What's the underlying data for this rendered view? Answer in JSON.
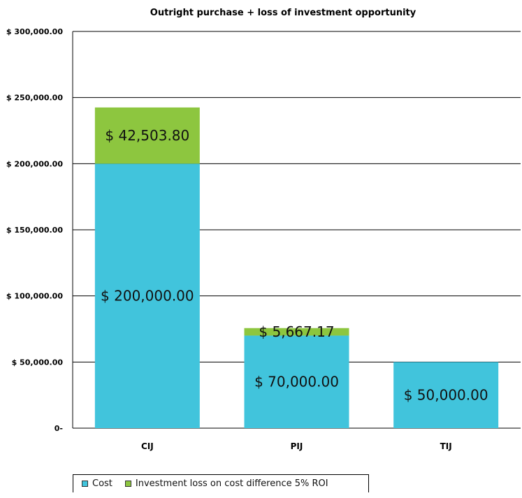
{
  "chart_data": {
    "type": "bar",
    "stacked": true,
    "title": "Outright purchase + loss of investment opportunity",
    "categories": [
      "CIJ",
      "PIJ",
      "TIJ"
    ],
    "series": [
      {
        "name": "Cost",
        "color": "#41c4dc",
        "values": [
          200000,
          70000,
          50000
        ],
        "labels": [
          "$ 200,000.00",
          "$ 70,000.00",
          "$ 50,000.00"
        ]
      },
      {
        "name": "Investment loss on cost difference 5% ROI",
        "color": "#8dc63f",
        "values": [
          42503.8,
          5667.17,
          0
        ],
        "labels": [
          "$ 42,503.80",
          "$ 5,667.17",
          ""
        ]
      }
    ],
    "ylim": [
      0,
      300000
    ],
    "yticks": [
      0,
      50000,
      100000,
      150000,
      200000,
      250000,
      300000
    ],
    "ytick_labels": [
      "0-",
      "$ 50,000.00",
      "$ 100,000.00",
      "$ 150,000.00",
      "$ 200,000.00",
      "$ 250,000.00",
      "$ 300,000.00"
    ],
    "grid": true,
    "legend_position": "bottom"
  }
}
